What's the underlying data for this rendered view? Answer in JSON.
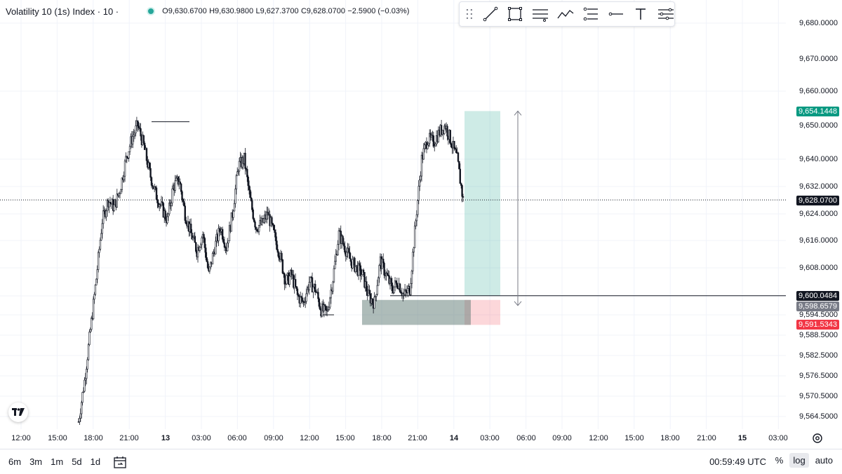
{
  "legend": {
    "symbol": "Volatility 10 (1s) Index · 10 ·",
    "open": "O9,630.6700",
    "high": "H9,630.9800",
    "low": "L9,627.3700",
    "close": "C9,628.0700",
    "change": "−2.5900 (−0.03%)"
  },
  "toolbar": {
    "tools": [
      "trend-line-icon",
      "rectangle-icon",
      "parallel-lines-icon",
      "path-icon",
      "fib-icon",
      "horizontal-line-icon",
      "text-icon",
      "settings-lines-icon"
    ]
  },
  "price_axis": {
    "ticks": [
      "9,680.0000",
      "9,670.0000",
      "9,660.0000",
      "9,650.0000",
      "9,640.0000",
      "9,632.0000",
      "9,624.0000",
      "9,616.0000",
      "9,608.0000",
      "9,594.5000",
      "9,588.5000",
      "9,582.5000",
      "9,576.5000",
      "9,570.5000",
      "9,564.5000"
    ],
    "labels": {
      "target": "9,654.1448",
      "last": "9,628.0700",
      "entry": "9,600.0484",
      "mid": "9,598.6579",
      "stop": "9,591.5343"
    }
  },
  "time_axis": {
    "ticks": [
      "12:00",
      "15:00",
      "18:00",
      "21:00",
      "13",
      "03:00",
      "06:00",
      "09:00",
      "12:00",
      "15:00",
      "18:00",
      "21:00",
      "14",
      "03:00",
      "06:00",
      "09:00",
      "12:00",
      "15:00",
      "18:00",
      "21:00",
      "15",
      "03:00"
    ]
  },
  "bottom_bar": {
    "timeframes": [
      "6m",
      "3m",
      "1m",
      "5d",
      "1d"
    ],
    "clock": "00:59:49 UTC",
    "percent": "%",
    "log": "log",
    "auto": "auto"
  },
  "chart_data": {
    "type": "candlestick",
    "y_scale": "log",
    "last_price": 9628.07,
    "position": {
      "target": 9654.1448,
      "entry": 9600.0484,
      "stop": 9591.5343
    },
    "close_path": [
      9563,
      9575,
      9590,
      9605,
      9622,
      9628,
      9626,
      9631,
      9640,
      9646,
      9650,
      9644,
      9636,
      9630,
      9626,
      9622,
      9632,
      9634,
      9624,
      9618,
      9613,
      9618,
      9606,
      9614,
      9620,
      9614,
      9624,
      9638,
      9640,
      9628,
      9620,
      9621,
      9624,
      9618,
      9612,
      9604,
      9606,
      9600,
      9598,
      9604,
      9602,
      9596,
      9595,
      9605,
      9618,
      9614,
      9610,
      9608,
      9606,
      9600,
      9598,
      9610,
      9606,
      9602,
      9604,
      9600,
      9602,
      9622,
      9640,
      9646,
      9645,
      9648,
      9650,
      9645,
      9640,
      9628
    ]
  }
}
